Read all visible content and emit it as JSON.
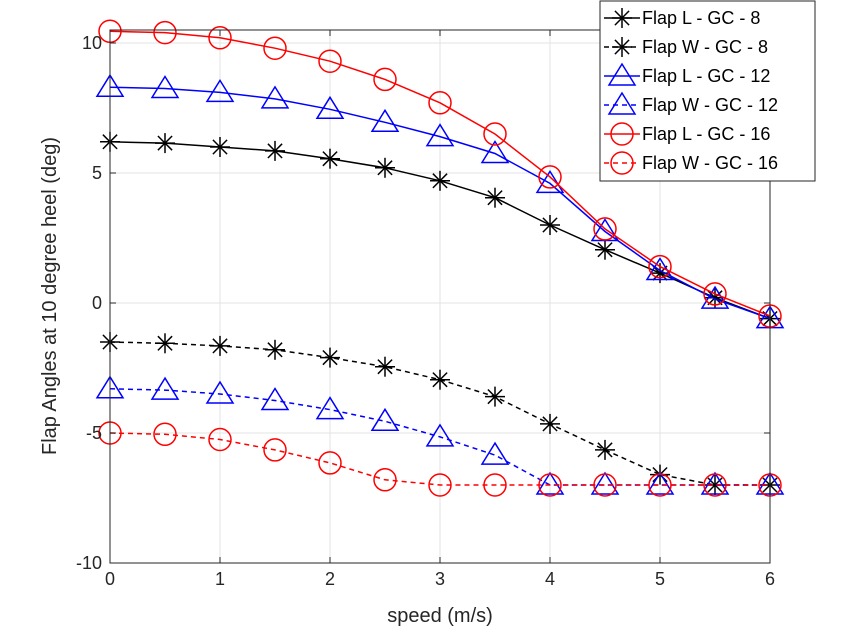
{
  "chart_data": {
    "type": "line",
    "title": "",
    "xlabel": "speed (m/s)",
    "ylabel": "Flap Angles at 10 degree heel (deg)",
    "xlim": [
      0,
      6
    ],
    "ylim": [
      -10,
      10.5
    ],
    "xticks": [
      0,
      1,
      2,
      3,
      4,
      5,
      6
    ],
    "xtick_labels": [
      "0",
      "1",
      "2",
      "3",
      "4",
      "5",
      "6"
    ],
    "yticks": [
      -10,
      -5,
      0,
      5,
      10
    ],
    "ytick_labels": [
      "-10",
      "-5",
      "0",
      "5",
      "10"
    ],
    "grid": true,
    "legend_position": "top-right",
    "x": [
      0,
      0.5,
      1,
      1.5,
      2,
      2.5,
      3,
      3.5,
      4,
      4.5,
      5,
      5.5,
      6
    ],
    "series": [
      {
        "name": "Flap L - GC - 8",
        "color": "#000000",
        "linestyle": "solid",
        "marker": "asterisk",
        "values": [
          6.2,
          6.15,
          6.0,
          5.85,
          5.55,
          5.2,
          4.7,
          4.05,
          3.0,
          2.05,
          1.15,
          0.2,
          -0.6
        ]
      },
      {
        "name": "Flap W - GC - 8",
        "color": "#000000",
        "linestyle": "dashed",
        "marker": "asterisk",
        "values": [
          -1.5,
          -1.55,
          -1.65,
          -1.8,
          -2.1,
          -2.45,
          -2.95,
          -3.6,
          -4.65,
          -5.65,
          -6.6,
          -7.0,
          -7.0
        ]
      },
      {
        "name": "Flap L - GC - 12",
        "color": "#0000ff",
        "linestyle": "solid",
        "marker": "triangle",
        "values": [
          8.3,
          8.25,
          8.1,
          7.85,
          7.45,
          6.95,
          6.4,
          5.75,
          4.6,
          2.75,
          1.25,
          0.15,
          -0.6
        ]
      },
      {
        "name": "Flap W - GC - 12",
        "color": "#0000ff",
        "linestyle": "dashed",
        "marker": "triangle",
        "values": [
          -3.3,
          -3.35,
          -3.5,
          -3.75,
          -4.1,
          -4.55,
          -5.15,
          -5.85,
          -7.0,
          -7.0,
          -7.0,
          -7.0,
          -7.0
        ]
      },
      {
        "name": "Flap L - GC - 16",
        "color": "#ff0000",
        "linestyle": "solid",
        "marker": "circle",
        "values": [
          10.45,
          10.4,
          10.2,
          9.8,
          9.3,
          8.6,
          7.7,
          6.5,
          4.85,
          2.85,
          1.4,
          0.35,
          -0.5
        ]
      },
      {
        "name": "Flap W - GC - 16",
        "color": "#ff0000",
        "linestyle": "dashed",
        "marker": "circle",
        "values": [
          -5.0,
          -5.05,
          -5.25,
          -5.65,
          -6.15,
          -6.8,
          -7.0,
          -7.0,
          -7.0,
          -7.0,
          -7.0,
          -7.0,
          -7.0
        ]
      }
    ]
  }
}
